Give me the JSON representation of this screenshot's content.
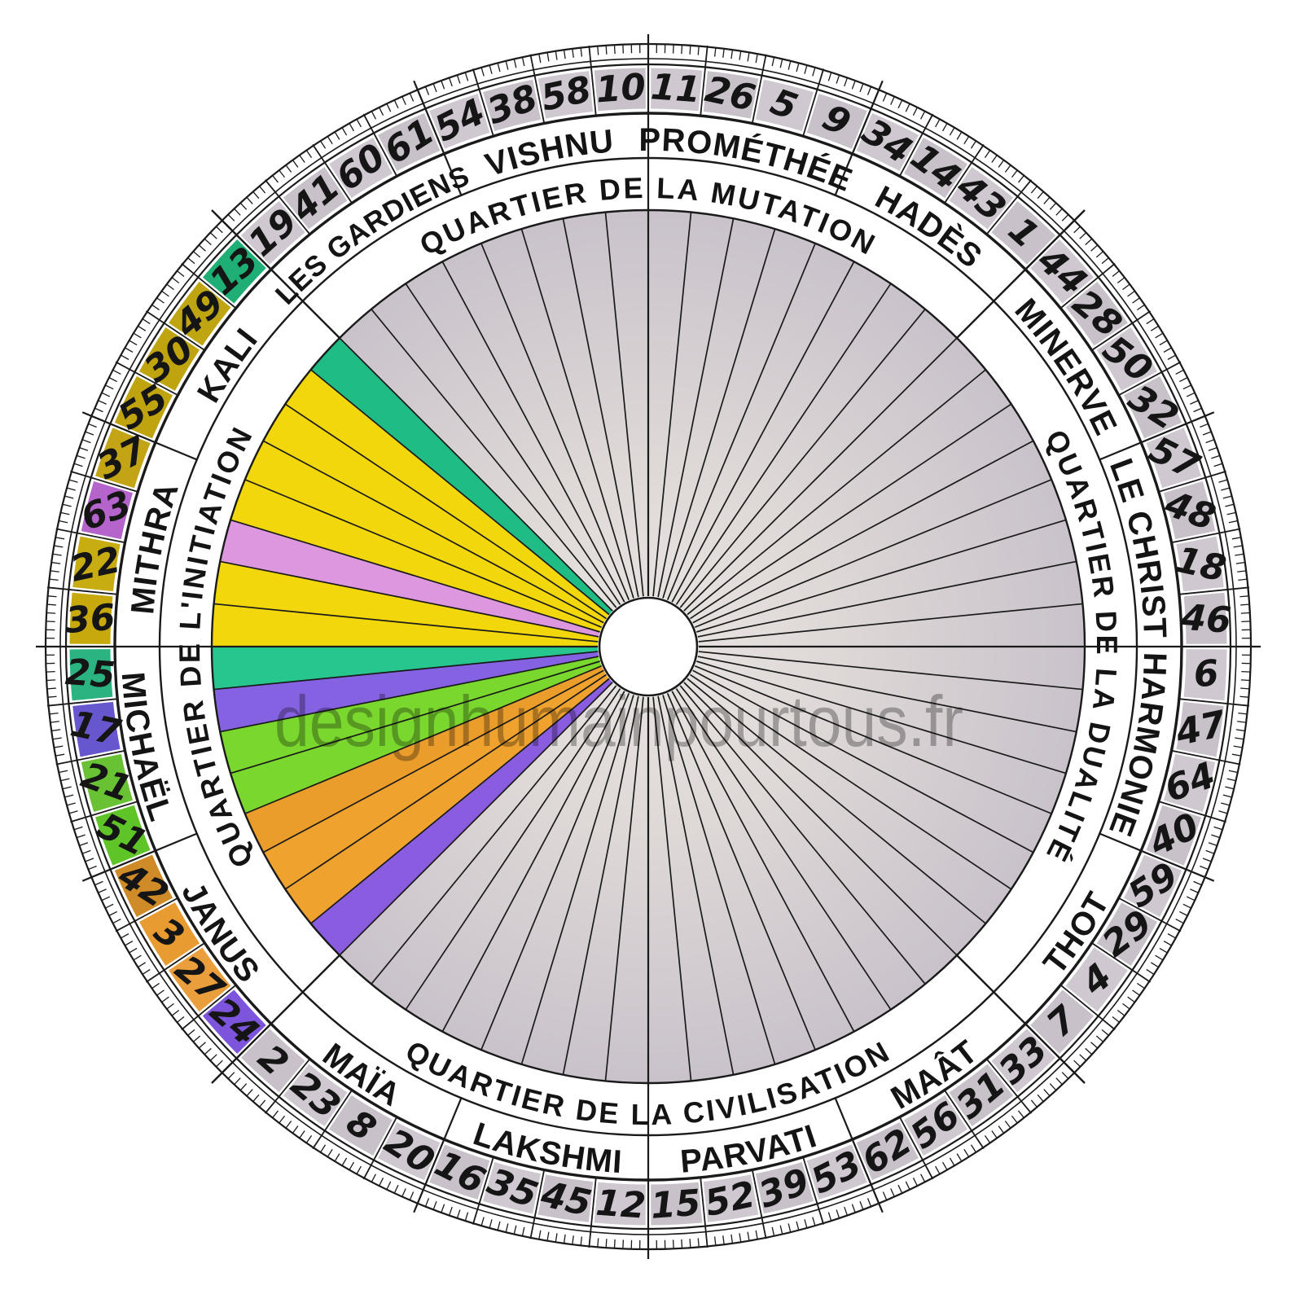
{
  "wheel": {
    "watermark": "designhumainpourtous.fr",
    "quarters": [
      {
        "label": "QUARTIER DE LA MUTATION",
        "center_deg": 0
      },
      {
        "label": "QUARTIER DE LA DUALITÉ",
        "center_deg": 90
      },
      {
        "label": "QUARTIER DE LA CIVILISATION",
        "center_deg": 180
      },
      {
        "label": "QUARTIER DE L'INITIATION",
        "center_deg": 270
      }
    ],
    "godheads_clockwise_from_top": [
      "PROMÉTHÉE",
      "HADÈS",
      "MINERVE",
      "LE CHRIST",
      "HARMONIE",
      "THOT",
      "MAÂT",
      "PARVATI",
      "LAKSHMI",
      "MAÏA",
      "JANUS",
      "MICHAËL",
      "MITHRA",
      "KALI",
      "LES GARDIENS",
      "VISHNU"
    ],
    "gates_clockwise_from_top": [
      {
        "num": 11
      },
      {
        "num": 26
      },
      {
        "num": 5
      },
      {
        "num": 9
      },
      {
        "num": 34
      },
      {
        "num": 14
      },
      {
        "num": 43
      },
      {
        "num": 1
      },
      {
        "num": 44
      },
      {
        "num": 28
      },
      {
        "num": 50
      },
      {
        "num": 32
      },
      {
        "num": 57
      },
      {
        "num": 48
      },
      {
        "num": 18
      },
      {
        "num": 46
      },
      {
        "num": 6
      },
      {
        "num": 47
      },
      {
        "num": 64
      },
      {
        "num": 40
      },
      {
        "num": 59
      },
      {
        "num": 29
      },
      {
        "num": 4
      },
      {
        "num": 7
      },
      {
        "num": 33
      },
      {
        "num": 31
      },
      {
        "num": 56
      },
      {
        "num": 62
      },
      {
        "num": 53
      },
      {
        "num": 39
      },
      {
        "num": 52
      },
      {
        "num": 15
      },
      {
        "num": 12
      },
      {
        "num": 45
      },
      {
        "num": 35
      },
      {
        "num": 16
      },
      {
        "num": 20
      },
      {
        "num": 8
      },
      {
        "num": 23
      },
      {
        "num": 2
      },
      {
        "num": 24,
        "cell": "#7c55dc",
        "wedge": "#8a5ce0"
      },
      {
        "num": 27,
        "cell": "#eb9f3c",
        "wedge": "#f0a22e"
      },
      {
        "num": 3,
        "cell": "#e79b30",
        "wedge": "#f0a22e"
      },
      {
        "num": 42,
        "cell": "#cf8b28",
        "wedge": "#eb9d2b"
      },
      {
        "num": 51,
        "cell": "#5ec427",
        "wedge": "#79d72e"
      },
      {
        "num": 21,
        "cell": "#68c233",
        "wedge": "#79d72e"
      },
      {
        "num": 17,
        "cell": "#6757cf",
        "wedge": "#8562e2"
      },
      {
        "num": 25,
        "cell": "#2bb381",
        "wedge": "#27c68e"
      },
      {
        "num": 36,
        "cell": "#c7a90e",
        "wedge": "#f1d70c"
      },
      {
        "num": 22,
        "cell": "#c7ac12",
        "wedge": "#f1d70c"
      },
      {
        "num": 63,
        "cell": "#b464cb",
        "wedge": "#dd97de"
      },
      {
        "num": 37,
        "cell": "#c2a414",
        "wedge": "#f1d70c"
      },
      {
        "num": 55,
        "cell": "#bfa30f",
        "wedge": "#f1d70c"
      },
      {
        "num": 30,
        "cell": "#bfa30f",
        "wedge": "#f1d70c"
      },
      {
        "num": 49,
        "cell": "#c0a512",
        "wedge": "#f1d70c"
      },
      {
        "num": 13,
        "cell": "#1fae73",
        "wedge": "#1fbd85"
      },
      {
        "num": 19
      },
      {
        "num": 41
      },
      {
        "num": 60
      },
      {
        "num": 61
      },
      {
        "num": 54
      },
      {
        "num": 38
      },
      {
        "num": 58
      },
      {
        "num": 10
      }
    ],
    "palette": {
      "line": "#1a1a1a",
      "gray_cell_even": "#cfc8d1",
      "gray_cell_odd": "#c8c1ca",
      "disk_center": "#eae6e2",
      "disk_mid": "#ddd7d6",
      "disk_edge": "#c9c2cb",
      "band_bg": "#ffffff",
      "watermark_color": "#6f6f6f"
    }
  }
}
